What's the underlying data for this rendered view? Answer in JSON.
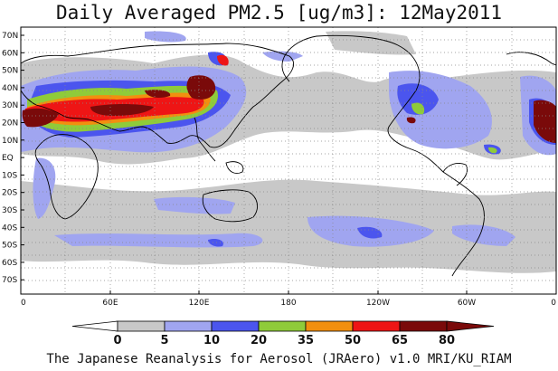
{
  "title": "Daily Averaged PM2.5 [ug/m3]: 12May2011",
  "footer": "The Japanese Reanalysis for Aerosol (JRAero) v1.0 MRI/KU_RIAM",
  "lat_labels": [
    "70N",
    "60N",
    "50N",
    "40N",
    "30N",
    "20N",
    "10N",
    "EQ",
    "10S",
    "20S",
    "30S",
    "40S",
    "50S",
    "60S",
    "70S"
  ],
  "lon_labels": [
    "0",
    "60E",
    "120E",
    "180",
    "120W",
    "60W",
    "0"
  ],
  "colorbar": {
    "boundaries": [
      "0",
      "5",
      "10",
      "20",
      "35",
      "50",
      "65",
      "80"
    ],
    "colors": [
      "#ffffff",
      "#c8c8c8",
      "#a0a5f0",
      "#4b55ee",
      "#8fcb3a",
      "#f28f0f",
      "#ee1515",
      "#7a0a0a"
    ]
  }
}
